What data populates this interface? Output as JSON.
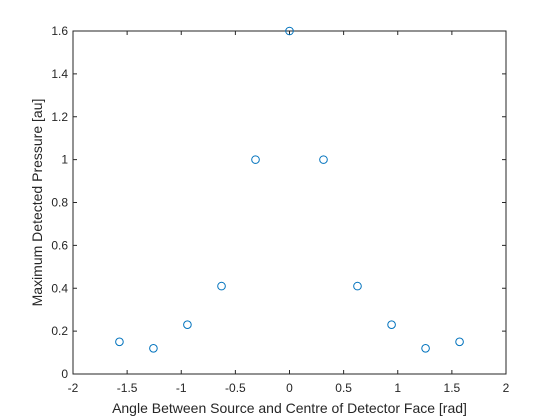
{
  "chart_data": {
    "type": "scatter",
    "xlabel": "Angle Between Source and Centre of Detector Face [rad]",
    "ylabel": "Maximum Detected Pressure [au]",
    "xlim": [
      -2,
      2
    ],
    "ylim": [
      0,
      1.6
    ],
    "xticks": [
      -2,
      -1.5,
      -1,
      -0.5,
      0,
      0.5,
      1,
      1.5,
      2
    ],
    "xtick_labels": [
      "-2",
      "-1.5",
      "-1",
      "-0.5",
      "0",
      "0.5",
      "1",
      "1.5",
      "2"
    ],
    "yticks": [
      0,
      0.2,
      0.4,
      0.6,
      0.8,
      1,
      1.2,
      1.4,
      1.6
    ],
    "ytick_labels": [
      "0",
      "0.2",
      "0.4",
      "0.6",
      "0.8",
      "1",
      "1.2",
      "1.4",
      "1.6"
    ],
    "grid": false,
    "marker_color": "#0072BD",
    "marker": "open-circle",
    "series": [
      {
        "x": [
          -1.571,
          -1.257,
          -0.943,
          -0.628,
          -0.314,
          0,
          0.314,
          0.628,
          0.943,
          1.257,
          1.571
        ],
        "y": [
          0.15,
          0.12,
          0.23,
          0.41,
          1.0,
          1.6,
          1.0,
          0.41,
          0.23,
          0.12,
          0.15
        ]
      }
    ]
  }
}
